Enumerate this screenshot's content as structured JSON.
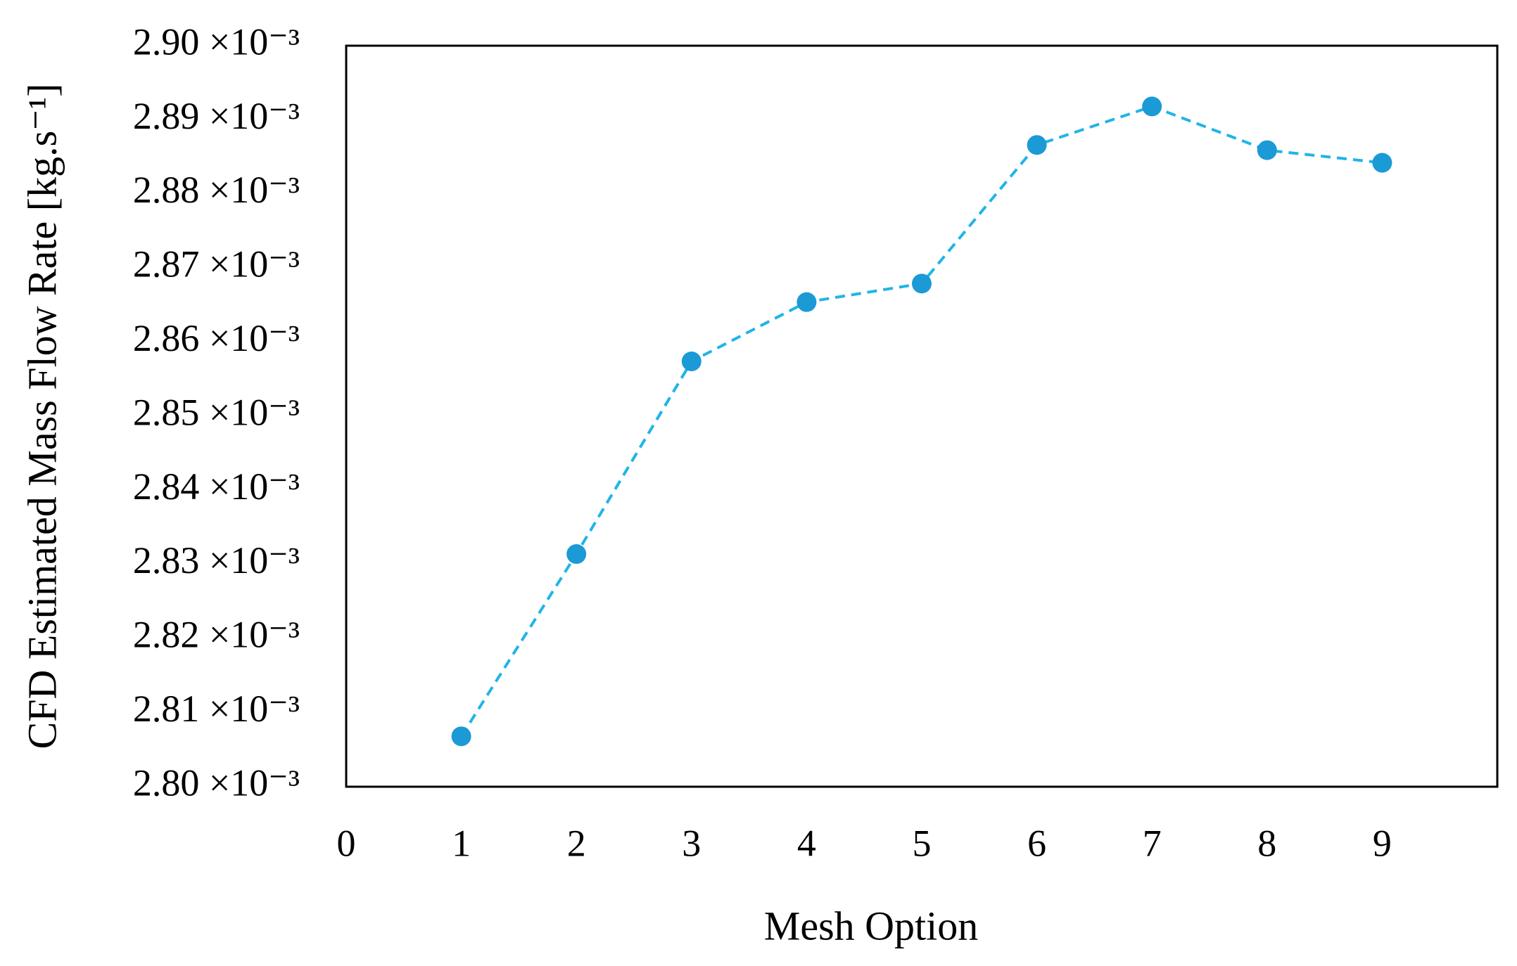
{
  "chart_data": {
    "type": "line",
    "x_label": "Mesh Option",
    "y_label": "CFD Estimated Mass Flow Rate [kg.s⁻¹]",
    "x": [
      1,
      2,
      3,
      4,
      5,
      6,
      7,
      8,
      9
    ],
    "series": [
      {
        "color": "#1b9ad6",
        "line_color": "#22b4e6",
        "line_style": "dashed",
        "marker": "circle",
        "values": [
          0.0028068,
          0.0028314,
          0.0028574,
          0.0028654,
          0.0028679,
          0.0028866,
          0.0028918,
          0.0028859,
          0.0028842
        ]
      }
    ],
    "xlim": [
      0,
      10
    ],
    "xticks": [
      0,
      1,
      2,
      3,
      4,
      5,
      6,
      7,
      8,
      9
    ],
    "ylim": [
      0.0028,
      0.0029
    ],
    "yticks": [
      {
        "value": 0.0028,
        "label": "2.80 ×10⁻³"
      },
      {
        "value": 0.00281,
        "label": "2.81 ×10⁻³"
      },
      {
        "value": 0.00282,
        "label": "2.82 ×10⁻³"
      },
      {
        "value": 0.00283,
        "label": "2.83 ×10⁻³"
      },
      {
        "value": 0.00284,
        "label": "2.84 ×10⁻³"
      },
      {
        "value": 0.00285,
        "label": "2.85 ×10⁻³"
      },
      {
        "value": 0.00286,
        "label": "2.86 ×10⁻³"
      },
      {
        "value": 0.00287,
        "label": "2.87 ×10⁻³"
      },
      {
        "value": 0.00288,
        "label": "2.88 ×10⁻³"
      },
      {
        "value": 0.00289,
        "label": "2.89 ×10⁻³"
      },
      {
        "value": 0.0029,
        "label": "2.90 ×10⁻³"
      }
    ],
    "grid": false
  }
}
